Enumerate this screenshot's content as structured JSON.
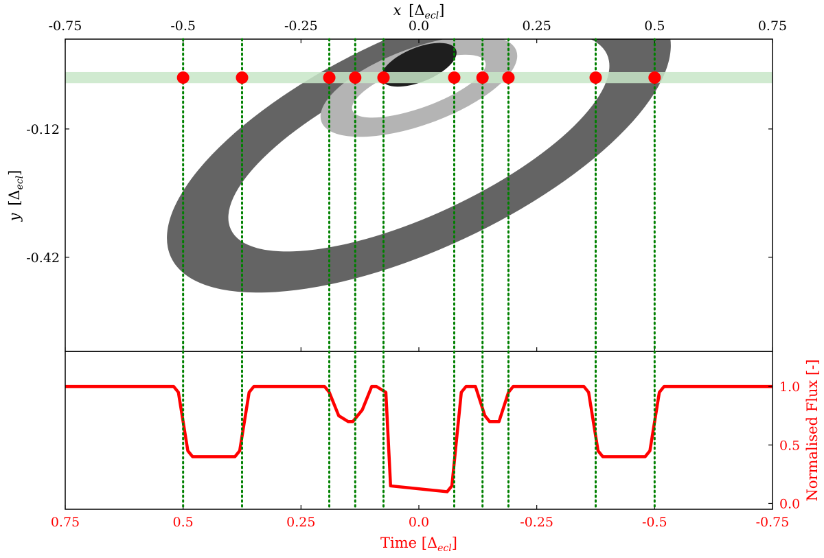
{
  "chart_data": [
    {
      "type": "scatter",
      "panel": "top",
      "xlabel": {
        "var": "x",
        "unit_base": "[Δ",
        "unit_sub": "ecl",
        "unit_close": "]"
      },
      "ylabel": {
        "var": "y",
        "unit_base": "[Δ",
        "unit_sub": "ecl",
        "unit_close": "]"
      },
      "xlim": [
        -0.75,
        0.75
      ],
      "ylim": [
        -0.64,
        0.09
      ],
      "x_ticks": [
        -0.75,
        -0.5,
        -0.25,
        0.0,
        0.25,
        0.5,
        0.75
      ],
      "x_tick_labels": [
        "-0.75",
        "-0.5",
        "-0.25",
        "0.0",
        "0.25",
        "0.5",
        "0.75"
      ],
      "y_ticks": [
        -0.12,
        -0.42
      ],
      "y_tick_labels": [
        "-0.12",
        "-0.42"
      ],
      "transit_band": {
        "y_center": 0.0,
        "half_width": 0.013,
        "color": "#c8e6c8"
      },
      "ellipses": [
        {
          "cx": 0.0,
          "cy": -0.15,
          "rx_outer": 0.58,
          "ry_outer": 0.25,
          "rx_inner": 0.44,
          "ry_inner": 0.17,
          "angle_deg": -25,
          "color": "#646464"
        },
        {
          "cx": 0.0,
          "cy": -0.02,
          "rx_outer": 0.22,
          "ry_outer": 0.09,
          "rx_inner": 0.15,
          "ry_inner": 0.05,
          "angle_deg": -20,
          "color": "#b4b4b4"
        },
        {
          "cx": 0.0,
          "cy": 0.03,
          "rx_outer": 0.085,
          "ry_outer": 0.04,
          "rx_inner": 0.0,
          "ry_inner": 0.0,
          "angle_deg": -22,
          "color": "#1e1e1e"
        }
      ],
      "contact_points_x": [
        -0.5,
        -0.375,
        -0.19,
        -0.135,
        -0.075,
        0.075,
        0.135,
        0.19,
        0.375,
        0.5
      ],
      "contact_point_color": "#ff0000",
      "guide_line_color": "#008000"
    },
    {
      "type": "line",
      "panel": "bottom",
      "xlabel": {
        "base": "Time [Δ",
        "sub": "ecl",
        "close": "]"
      },
      "ylabel": "Normalised Flux [-]",
      "label_color": "#ff0000",
      "xlim": [
        0.75,
        -0.75
      ],
      "ylim": [
        -0.05,
        1.3
      ],
      "x_ticks": [
        0.75,
        0.5,
        0.25,
        0.0,
        -0.25,
        -0.5,
        -0.75
      ],
      "x_tick_labels": [
        "0.75",
        "0.5",
        "0.25",
        "0.0",
        "-0.25",
        "-0.5",
        "-0.75"
      ],
      "y_ticks": [
        0.0,
        0.5,
        1.0
      ],
      "y_tick_labels": [
        "0.0",
        "0.5",
        "1.0"
      ],
      "series": [
        {
          "color": "#ff0000",
          "x": [
            0.75,
            0.52,
            0.51,
            0.49,
            0.48,
            0.39,
            0.38,
            0.36,
            0.35,
            0.2,
            0.19,
            0.17,
            0.15,
            0.14,
            0.12,
            0.1,
            0.09,
            0.07,
            0.06,
            -0.06,
            -0.07,
            -0.09,
            -0.1,
            -0.12,
            -0.14,
            -0.15,
            -0.17,
            -0.19,
            -0.2,
            -0.35,
            -0.36,
            -0.38,
            -0.39,
            -0.48,
            -0.49,
            -0.51,
            -0.52,
            -0.75
          ],
          "y": [
            1.0,
            1.0,
            0.95,
            0.45,
            0.4,
            0.4,
            0.45,
            0.95,
            1.0,
            1.0,
            0.95,
            0.75,
            0.7,
            0.7,
            0.8,
            1.0,
            1.0,
            0.95,
            0.15,
            0.1,
            0.15,
            0.95,
            1.0,
            1.0,
            0.75,
            0.7,
            0.7,
            0.95,
            1.0,
            1.0,
            0.95,
            0.45,
            0.4,
            0.4,
            0.45,
            0.95,
            1.0,
            1.0
          ]
        }
      ]
    }
  ]
}
